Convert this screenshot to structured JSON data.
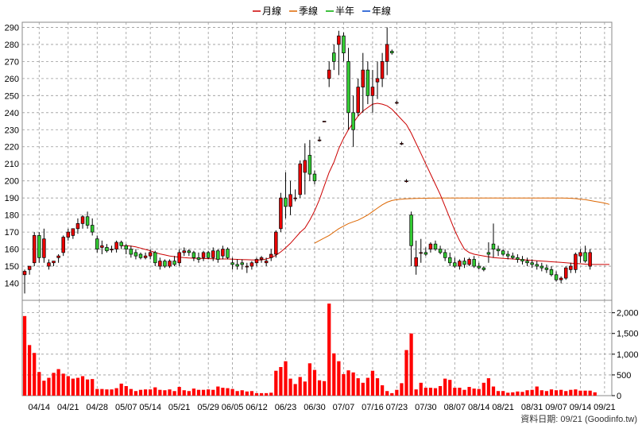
{
  "legend": [
    {
      "label": "月線",
      "color": "#cc0000"
    },
    {
      "label": "季線",
      "color": "#dd6600"
    },
    {
      "label": "半年",
      "color": "#00aa00"
    },
    {
      "label": "年線",
      "color": "#0044cc"
    }
  ],
  "footer": {
    "text": "資料日期: 09/21  (Goodinfo.tw)"
  },
  "chart_data": {
    "type": "candlestick",
    "price_axis": {
      "min": 130,
      "max": 293,
      "ticks": [
        140,
        150,
        160,
        170,
        180,
        190,
        200,
        210,
        220,
        230,
        240,
        250,
        260,
        270,
        280,
        290
      ]
    },
    "volume_axis": {
      "min": 0,
      "max": 2300,
      "ticks": [
        0,
        500,
        1000,
        1500,
        2000
      ],
      "tick_labels": [
        "0",
        "500",
        "1,000",
        "1,500",
        "2,000"
      ]
    },
    "x_tick_labels": [
      "04/14",
      "04/21",
      "04/28",
      "05/07",
      "05/14",
      "05/21",
      "05/29",
      "06/05",
      "06/12",
      "06/23",
      "06/30",
      "07/07",
      "07/16",
      "07/23",
      "07/30",
      "08/07",
      "08/14",
      "08/21",
      "08/31",
      "09/07",
      "09/14",
      "09/21"
    ],
    "x_tick_index": [
      3,
      9,
      15,
      21,
      26,
      32,
      38,
      43,
      48,
      54,
      60,
      66,
      72,
      77,
      83,
      89,
      94,
      99,
      105,
      110,
      115,
      120
    ],
    "n_days": 122,
    "colors": {
      "up": "#ee0000",
      "down": "#33cc33",
      "volume": "#ff0000",
      "ma_month": "#cc0000",
      "ma_quarter": "#dd6600"
    },
    "ohlc": [
      [
        145,
        148,
        134,
        147
      ],
      [
        148,
        150,
        145,
        150
      ],
      [
        152,
        170,
        150,
        168
      ],
      [
        168,
        170,
        152,
        155
      ],
      [
        155,
        172,
        152,
        166
      ],
      [
        150,
        154,
        148,
        152
      ],
      [
        152,
        153,
        150,
        153
      ],
      [
        155,
        157,
        152,
        156
      ],
      [
        158,
        168,
        156,
        167
      ],
      [
        167,
        172,
        165,
        170
      ],
      [
        168,
        172,
        166,
        172
      ],
      [
        172,
        178,
        169,
        175
      ],
      [
        175,
        180,
        172,
        179
      ],
      [
        179,
        182,
        172,
        174
      ],
      [
        174,
        178,
        168,
        170
      ],
      [
        166,
        168,
        158,
        160
      ],
      [
        161,
        165,
        157,
        162
      ],
      [
        161,
        163,
        158,
        159
      ],
      [
        160,
        162,
        158,
        160
      ],
      [
        160,
        165,
        158,
        164
      ],
      [
        164,
        165,
        160,
        162
      ],
      [
        162,
        163,
        157,
        160
      ],
      [
        160,
        162,
        155,
        157
      ],
      [
        158,
        160,
        154,
        156
      ],
      [
        157,
        158,
        154,
        155
      ],
      [
        155,
        158,
        154,
        156
      ],
      [
        156,
        160,
        154,
        158
      ],
      [
        158,
        159,
        150,
        152
      ],
      [
        150,
        155,
        148,
        153
      ],
      [
        153,
        154,
        149,
        150
      ],
      [
        150,
        154,
        149,
        153
      ],
      [
        153,
        156,
        150,
        151
      ],
      [
        152,
        160,
        150,
        158
      ],
      [
        158,
        161,
        156,
        159
      ],
      [
        159,
        160,
        156,
        158
      ],
      [
        158,
        159,
        153,
        155
      ],
      [
        155,
        158,
        152,
        154
      ],
      [
        155,
        159,
        153,
        158
      ],
      [
        158,
        159,
        154,
        155
      ],
      [
        155,
        161,
        153,
        159
      ],
      [
        159,
        160,
        152,
        154
      ],
      [
        156,
        162,
        154,
        160
      ],
      [
        160,
        161,
        154,
        155
      ],
      [
        152,
        155,
        148,
        151
      ],
      [
        151,
        154,
        148,
        150
      ],
      [
        152,
        154,
        148,
        151
      ],
      [
        150,
        152,
        146,
        150
      ],
      [
        150,
        153,
        148,
        152
      ],
      [
        152,
        155,
        150,
        154
      ],
      [
        154,
        156,
        152,
        155
      ],
      [
        152,
        155,
        150,
        153
      ],
      [
        155,
        160,
        153,
        157
      ],
      [
        157,
        171,
        155,
        170
      ],
      [
        172,
        193,
        170,
        190
      ],
      [
        190,
        205,
        178,
        185
      ],
      [
        185,
        200,
        180,
        192
      ],
      [
        190,
        195,
        188,
        190
      ],
      [
        192,
        212,
        190,
        210
      ],
      [
        205,
        222,
        192,
        212
      ],
      [
        215,
        224,
        200,
        204
      ],
      [
        204,
        206,
        198,
        200
      ],
      [
        224,
        226,
        223,
        224
      ],
      [
        235,
        235,
        235,
        235
      ],
      [
        260,
        270,
        255,
        265
      ],
      [
        275,
        280,
        265,
        270
      ],
      [
        280,
        288,
        262,
        285
      ],
      [
        285,
        287,
        270,
        275
      ],
      [
        270,
        278,
        230,
        240
      ],
      [
        240,
        250,
        220,
        230
      ],
      [
        240,
        260,
        238,
        255
      ],
      [
        255,
        275,
        240,
        265
      ],
      [
        265,
        270,
        245,
        250
      ],
      [
        250,
        265,
        240,
        255
      ],
      [
        258,
        270,
        248,
        260
      ],
      [
        260,
        275,
        255,
        270
      ],
      [
        270,
        290,
        262,
        280
      ],
      [
        276,
        277,
        274,
        275
      ],
      [
        246,
        247,
        245,
        246
      ],
      [
        222,
        223,
        221,
        222
      ],
      [
        200,
        201,
        199,
        200
      ],
      [
        180,
        182,
        150,
        162
      ],
      [
        150,
        165,
        145,
        155
      ],
      [
        158,
        166,
        152,
        158
      ],
      [
        158,
        161,
        156,
        157
      ],
      [
        160,
        164,
        158,
        163
      ],
      [
        163,
        165,
        159,
        160
      ],
      [
        160,
        162,
        157,
        158
      ],
      [
        158,
        160,
        153,
        155
      ],
      [
        155,
        158,
        150,
        152
      ],
      [
        152,
        155,
        149,
        150
      ],
      [
        150,
        154,
        148,
        153
      ],
      [
        153,
        155,
        149,
        151
      ],
      [
        151,
        155,
        150,
        154
      ],
      [
        154,
        156,
        149,
        150
      ],
      [
        150,
        152,
        148,
        149
      ],
      [
        149,
        150,
        147,
        148
      ],
      [
        158,
        164,
        152,
        157
      ],
      [
        163,
        175,
        155,
        160
      ],
      [
        160,
        162,
        156,
        159
      ],
      [
        159,
        160,
        156,
        157
      ],
      [
        157,
        159,
        154,
        156
      ],
      [
        156,
        158,
        154,
        155
      ],
      [
        155,
        157,
        152,
        154
      ],
      [
        154,
        156,
        151,
        153
      ],
      [
        153,
        155,
        150,
        152
      ],
      [
        152,
        154,
        149,
        151
      ],
      [
        151,
        153,
        148,
        150
      ],
      [
        150,
        152,
        147,
        149
      ],
      [
        149,
        151,
        146,
        148
      ],
      [
        148,
        150,
        144,
        145
      ],
      [
        145,
        147,
        141,
        142
      ],
      [
        142,
        144,
        140,
        143
      ],
      [
        143,
        150,
        142,
        149
      ],
      [
        148,
        152,
        146,
        150
      ],
      [
        148,
        158,
        146,
        157
      ],
      [
        156,
        160,
        152,
        158
      ],
      [
        158,
        162,
        152,
        153
      ],
      [
        150,
        160,
        148,
        158
      ]
    ],
    "volume": [
      1920,
      1220,
      1030,
      570,
      360,
      430,
      550,
      640,
      530,
      470,
      410,
      430,
      470,
      390,
      400,
      160,
      160,
      150,
      150,
      180,
      290,
      230,
      160,
      110,
      140,
      150,
      150,
      200,
      140,
      130,
      150,
      110,
      210,
      130,
      110,
      170,
      140,
      140,
      150,
      140,
      220,
      190,
      180,
      160,
      110,
      130,
      100,
      110,
      60,
      60,
      60,
      70,
      600,
      690,
      830,
      410,
      280,
      450,
      340,
      780,
      620,
      370,
      350,
      2220,
      1020,
      830,
      520,
      610,
      560,
      420,
      310,
      430,
      600,
      420,
      250,
      110,
      60,
      140,
      300,
      1100,
      1500,
      150,
      310,
      190,
      190,
      180,
      230,
      410,
      380,
      190,
      190,
      140,
      210,
      170,
      160,
      310,
      420,
      220,
      110,
      110,
      70,
      80,
      100,
      90,
      130,
      140,
      220,
      130,
      110,
      150,
      130,
      140,
      110,
      140,
      150,
      120,
      120,
      120,
      80
    ],
    "ma_month": [
      null,
      null,
      null,
      null,
      null,
      null,
      null,
      null,
      null,
      null,
      null,
      null,
      null,
      null,
      null,
      null,
      null,
      null,
      null,
      null,
      162.0,
      162.0,
      161.8,
      161.3,
      160.6,
      159.8,
      159.0,
      158.0,
      157.2,
      156.6,
      156.0,
      155.6,
      155.3,
      155.0,
      154.8,
      154.7,
      154.6,
      154.5,
      154.4,
      154.3,
      154.2,
      154.2,
      154.2,
      154.1,
      154.0,
      153.9,
      153.8,
      153.7,
      153.6,
      153.6,
      154.2,
      155.0,
      156.4,
      158.4,
      160.8,
      163.4,
      166.6,
      169.8,
      172.4,
      177.0,
      182.5,
      189.0,
      197.0,
      205.0,
      211.0,
      219.0,
      225.0,
      230.0,
      234.0,
      238.0,
      241.0,
      243.0,
      245.0,
      245.5,
      245.0,
      244.0,
      242.0,
      239.0,
      236.0,
      233.0,
      228.0,
      222.0,
      216.0,
      210.0,
      204.0,
      198.0,
      192.0,
      185.0,
      178.0,
      171.0,
      165.0,
      160.0,
      158.0,
      157.0,
      156.5,
      156.0,
      155.5,
      155.0,
      154.8,
      154.6,
      154.4,
      154.2,
      154.0,
      153.8,
      153.6,
      153.4,
      153.2,
      153.0,
      152.8,
      152.6,
      152.4,
      152.2,
      152.0,
      151.8,
      151.6,
      151.4,
      151.2,
      151.0,
      151.0,
      151.0,
      151.0,
      151.0
    ],
    "ma_quarter": [
      null,
      null,
      null,
      null,
      null,
      null,
      null,
      null,
      null,
      null,
      null,
      null,
      null,
      null,
      null,
      null,
      null,
      null,
      null,
      null,
      null,
      null,
      null,
      null,
      null,
      null,
      null,
      null,
      null,
      null,
      null,
      null,
      null,
      null,
      null,
      null,
      null,
      null,
      null,
      null,
      null,
      null,
      null,
      null,
      null,
      null,
      null,
      null,
      null,
      null,
      null,
      null,
      null,
      null,
      null,
      null,
      null,
      null,
      null,
      null,
      163.5,
      165.0,
      166.5,
      168.0,
      170.0,
      172.0,
      173.5,
      175.0,
      176.0,
      177.0,
      178.5,
      180.0,
      182.0,
      184.0,
      186.0,
      187.5,
      188.5,
      189.0,
      189.3,
      189.5,
      189.6,
      189.7,
      189.8,
      189.8,
      189.9,
      189.9,
      190.0,
      190.0,
      190.0,
      190.0,
      190.0,
      190.0,
      190.0,
      190.0,
      190.0,
      190.0,
      190.0,
      190.0,
      190.0,
      190.0,
      190.0,
      190.0,
      190.0,
      190.0,
      190.0,
      190.0,
      190.0,
      190.0,
      190.0,
      190.0,
      190.0,
      190.0,
      189.9,
      189.8,
      189.6,
      189.3,
      189.0,
      188.5,
      188.0,
      187.5,
      187.0,
      186.2
    ]
  }
}
